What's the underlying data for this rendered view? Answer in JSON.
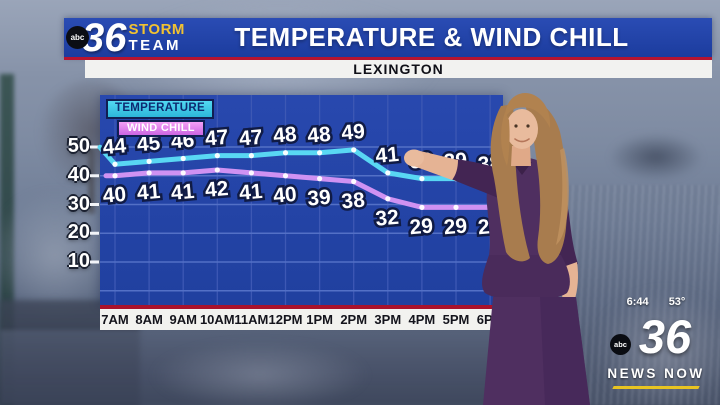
{
  "header": {
    "logo": {
      "abc": "abc",
      "number": "36",
      "line1": "STORM",
      "line2": "TEAM"
    },
    "title": "TEMPERATURE & WIND CHILL",
    "location": "LEXINGTON"
  },
  "chart_data": {
    "type": "line",
    "title": "Temperature & Wind Chill — Lexington",
    "categories": [
      "7AM",
      "8AM",
      "9AM",
      "10AM",
      "11AM",
      "12PM",
      "1PM",
      "2PM",
      "3PM",
      "4PM",
      "5PM",
      "6PM"
    ],
    "series": [
      {
        "name": "TEMPERATURE",
        "color": "#59d7f3",
        "values": [
          44,
          45,
          46,
          47,
          47,
          48,
          48,
          49,
          41,
          39,
          39,
          38
        ]
      },
      {
        "name": "WIND CHILL",
        "color": "#cf92f2",
        "values": [
          40,
          41,
          41,
          42,
          41,
          40,
          39,
          38,
          32,
          29,
          29,
          29
        ]
      }
    ],
    "yticks": [
      50,
      40,
      30,
      20,
      10
    ],
    "ygridlines": [
      50,
      40,
      30,
      20,
      10,
      0
    ],
    "ylim": [
      -5,
      55
    ],
    "grid": true,
    "legend_position": "top-left",
    "legend": {
      "temperature": "TEMPERATURE",
      "wind_chill": "WIND CHILL"
    }
  },
  "bug": {
    "time": "6:44",
    "outdoor_temp": "53°",
    "logo_abc": "abc",
    "logo_number": "36",
    "tagline": "NEWS NOW"
  },
  "colors": {
    "banner_blue": "#2144ab",
    "accent_red": "#b61430",
    "storm_yellow": "#f1c232",
    "chart_background_blue": "#2443a6",
    "temperature_line": "#59d7f3",
    "wind_chill_line": "#cf92f2",
    "news_underline_yellow": "#e8c422"
  }
}
